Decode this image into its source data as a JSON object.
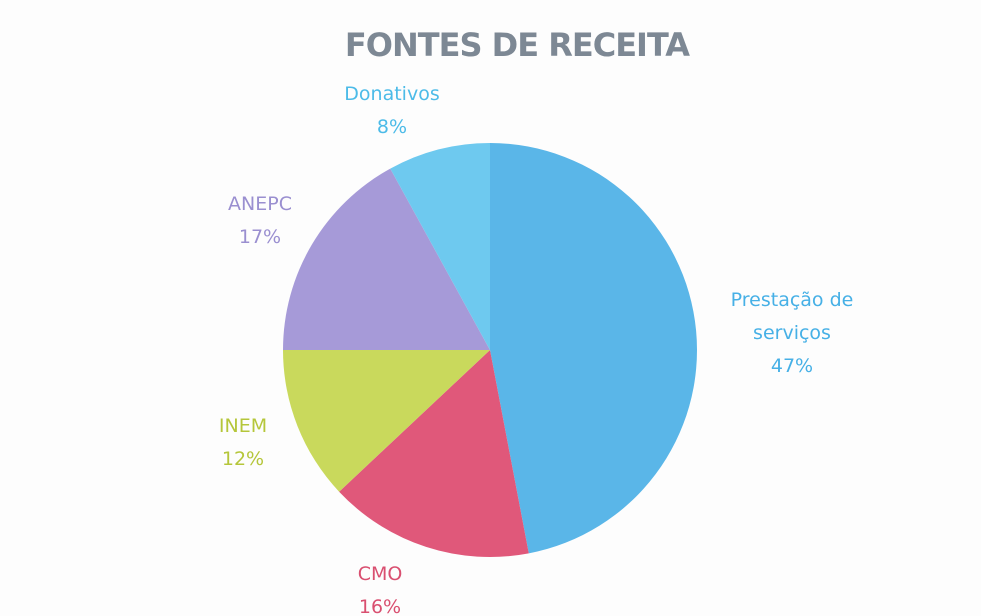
{
  "chart_data": {
    "type": "pie",
    "title": "FONTES DE RECEITA",
    "categories": [
      "Prestação de serviços",
      "CMO",
      "INEM",
      "ANEPC",
      "Donativos"
    ],
    "values": [
      47,
      16,
      12,
      17,
      8
    ],
    "value_labels": [
      "47%",
      "16%",
      "12%",
      "17%",
      "8%"
    ],
    "colors": [
      "#5ab6e8",
      "#e0587a",
      "#c9d95c",
      "#a69ad8",
      "#6ec9ef"
    ],
    "label_colors": [
      "#46b0e6",
      "#d94f70",
      "#b5c63a",
      "#9a8fd0",
      "#4cbbe8"
    ]
  }
}
